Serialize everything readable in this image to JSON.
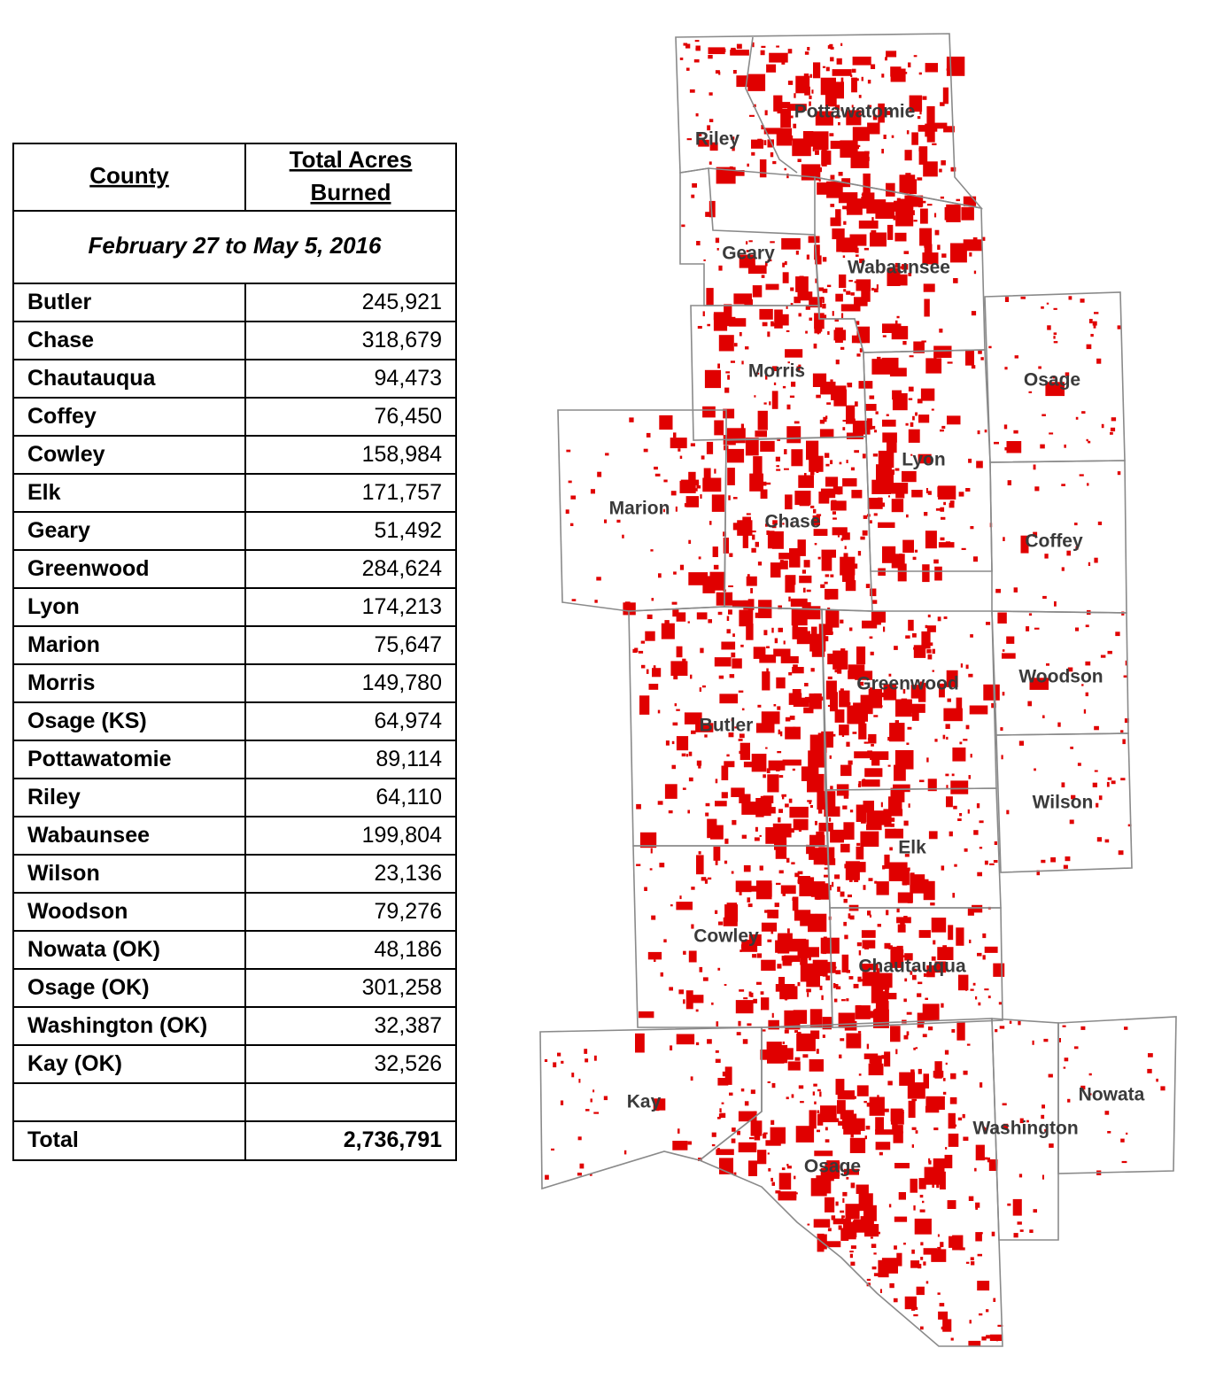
{
  "table": {
    "headers": [
      "County",
      "Total Acres Burned"
    ],
    "subtitle": "February 27 to May 5, 2016",
    "rows": [
      [
        "Butler",
        "245,921"
      ],
      [
        "Chase",
        "318,679"
      ],
      [
        "Chautauqua",
        "94,473"
      ],
      [
        "Coffey",
        "76,450"
      ],
      [
        "Cowley",
        "158,984"
      ],
      [
        "Elk",
        "171,757"
      ],
      [
        "Geary",
        "51,492"
      ],
      [
        "Greenwood",
        "284,624"
      ],
      [
        "Lyon",
        "174,213"
      ],
      [
        "Marion",
        "75,647"
      ],
      [
        "Morris",
        "149,780"
      ],
      [
        "Osage (KS)",
        "64,974"
      ],
      [
        "Pottawatomie",
        "89,114"
      ],
      [
        "Riley",
        "64,110"
      ],
      [
        "Wabaunsee",
        "199,804"
      ],
      [
        "Wilson",
        "23,136"
      ],
      [
        "Woodson",
        "79,276"
      ],
      [
        "Nowata (OK)",
        "48,186"
      ],
      [
        "Osage (OK)",
        "301,258"
      ],
      [
        "Washington (OK)",
        "32,387"
      ],
      [
        "Kay (OK)",
        "32,526"
      ]
    ],
    "total": [
      "Total",
      "2,736,791"
    ]
  },
  "map": {
    "labels": [
      "Pottawatomie",
      "Riley",
      "Geary",
      "Wabaunsee",
      "Morris",
      "Osage",
      "Lyon",
      "Marion",
      "Chase",
      "Coffey",
      "Woodson",
      "Greenwood",
      "Butler",
      "Wilson",
      "Elk",
      "Cowley",
      "Chautauqua",
      "Kay",
      "Nowata",
      "Washington",
      "Osage"
    ]
  }
}
